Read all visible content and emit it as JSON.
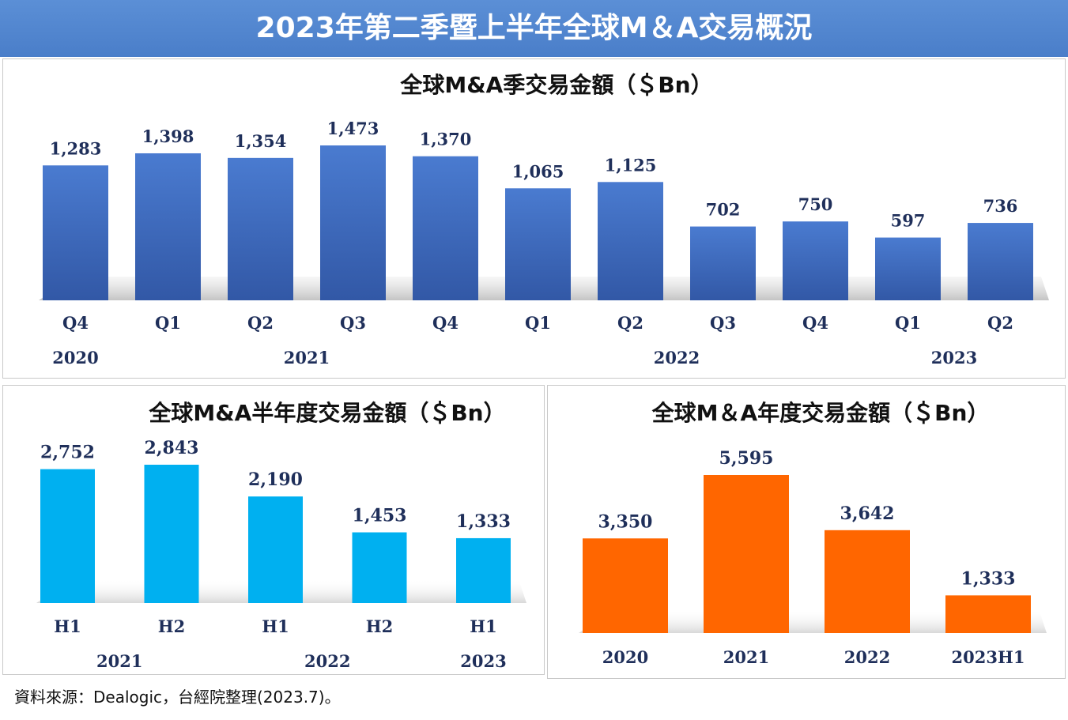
{
  "header": {
    "title": "2023年第二季暨上半年全球M＆A交易概況"
  },
  "source_note": "資料來源：Dealogic，台經院整理(2023.7)。",
  "colors": {
    "quarterly": "#3f6fc4",
    "half": "#00b0f0",
    "annual": "#ff6600",
    "label": "#1f2f5a"
  },
  "chart_data": [
    {
      "type": "bar",
      "title": "全球M&A季交易金額（＄Bn）",
      "categories": [
        "Q4",
        "Q1",
        "Q2",
        "Q3",
        "Q4",
        "Q1",
        "Q2",
        "Q3",
        "Q4",
        "Q1",
        "Q2"
      ],
      "values": [
        1283,
        1398,
        1354,
        1473,
        1370,
        1065,
        1125,
        702,
        750,
        597,
        736
      ],
      "value_labels": [
        "1,283",
        "1,398",
        "1,354",
        "1,473",
        "1,370",
        "1,065",
        "1,125",
        "702",
        "750",
        "597",
        "736"
      ],
      "year_groups": [
        {
          "label": "2020",
          "from": 0,
          "to": 0
        },
        {
          "label": "2021",
          "from": 1,
          "to": 4
        },
        {
          "label": "2022",
          "from": 5,
          "to": 8
        },
        {
          "label": "2023",
          "from": 9,
          "to": 10
        }
      ],
      "ylim": [
        0,
        1600
      ],
      "xlabel": "",
      "ylabel": "",
      "grid": false
    },
    {
      "type": "bar",
      "title": "全球M&A半年度交易金額（＄Bn）",
      "categories": [
        "H1",
        "H2",
        "H1",
        "H2",
        "H1"
      ],
      "values": [
        2752,
        2843,
        2190,
        1453,
        1333
      ],
      "value_labels": [
        "2,752",
        "2,843",
        "2,190",
        "1,453",
        "1,333"
      ],
      "year_groups": [
        {
          "label": "2021",
          "from": 0,
          "to": 1
        },
        {
          "label": "2022",
          "from": 2,
          "to": 3
        },
        {
          "label": "2023",
          "from": 4,
          "to": 4
        }
      ],
      "ylim": [
        0,
        3300
      ],
      "xlabel": "",
      "ylabel": "",
      "grid": false
    },
    {
      "type": "bar",
      "title": "全球M＆A年度交易金額（＄Bn）",
      "categories": [
        "2020",
        "2021",
        "2022",
        "2023H1"
      ],
      "values": [
        3350,
        5595,
        3642,
        1333
      ],
      "value_labels": [
        "3,350",
        "5,595",
        "3,642",
        "1,333"
      ],
      "ylim": [
        0,
        6300
      ],
      "xlabel": "",
      "ylabel": "",
      "grid": false
    }
  ]
}
